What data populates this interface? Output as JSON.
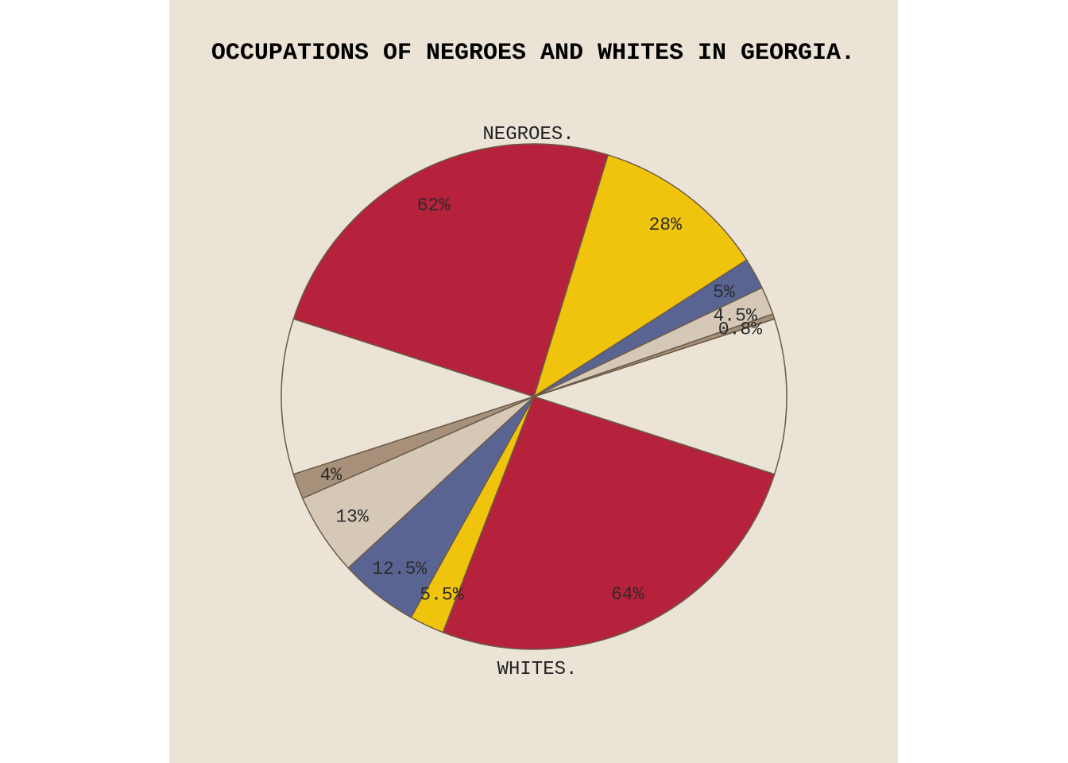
{
  "chart_data": {
    "type": "pie",
    "title": "OCCUPATIONS OF NEGROES AND WHITES IN GEORGIA.",
    "colors": {
      "page_background": "#ffffff",
      "panel_background": "#ebe3d6",
      "blank_half": "#ebe3d6",
      "outline": "#6b5a48"
    },
    "groups": [
      {
        "name": "NEGROES.",
        "slices": [
          {
            "value": 62,
            "label": "62%",
            "color": "#b6223b"
          },
          {
            "value": 28,
            "label": "28%",
            "color": "#f0c40c"
          },
          {
            "value": 5,
            "label": "5%",
            "color": "#5a6493"
          },
          {
            "value": 4.5,
            "label": "4.5%",
            "color": "#d6c8b6"
          },
          {
            "value": 0.8,
            "label": "0.8%",
            "color": "#a8917a"
          }
        ]
      },
      {
        "name": "WHITES.",
        "slices": [
          {
            "value": 64,
            "label": "64%",
            "color": "#b6223b"
          },
          {
            "value": 5.5,
            "label": "5.5%",
            "color": "#f0c40c"
          },
          {
            "value": 12.5,
            "label": "12.5%",
            "color": "#5a6493"
          },
          {
            "value": 13,
            "label": "13%",
            "color": "#d6c8b6"
          },
          {
            "value": 4,
            "label": "4%",
            "color": "#a8917a"
          }
        ]
      }
    ]
  }
}
